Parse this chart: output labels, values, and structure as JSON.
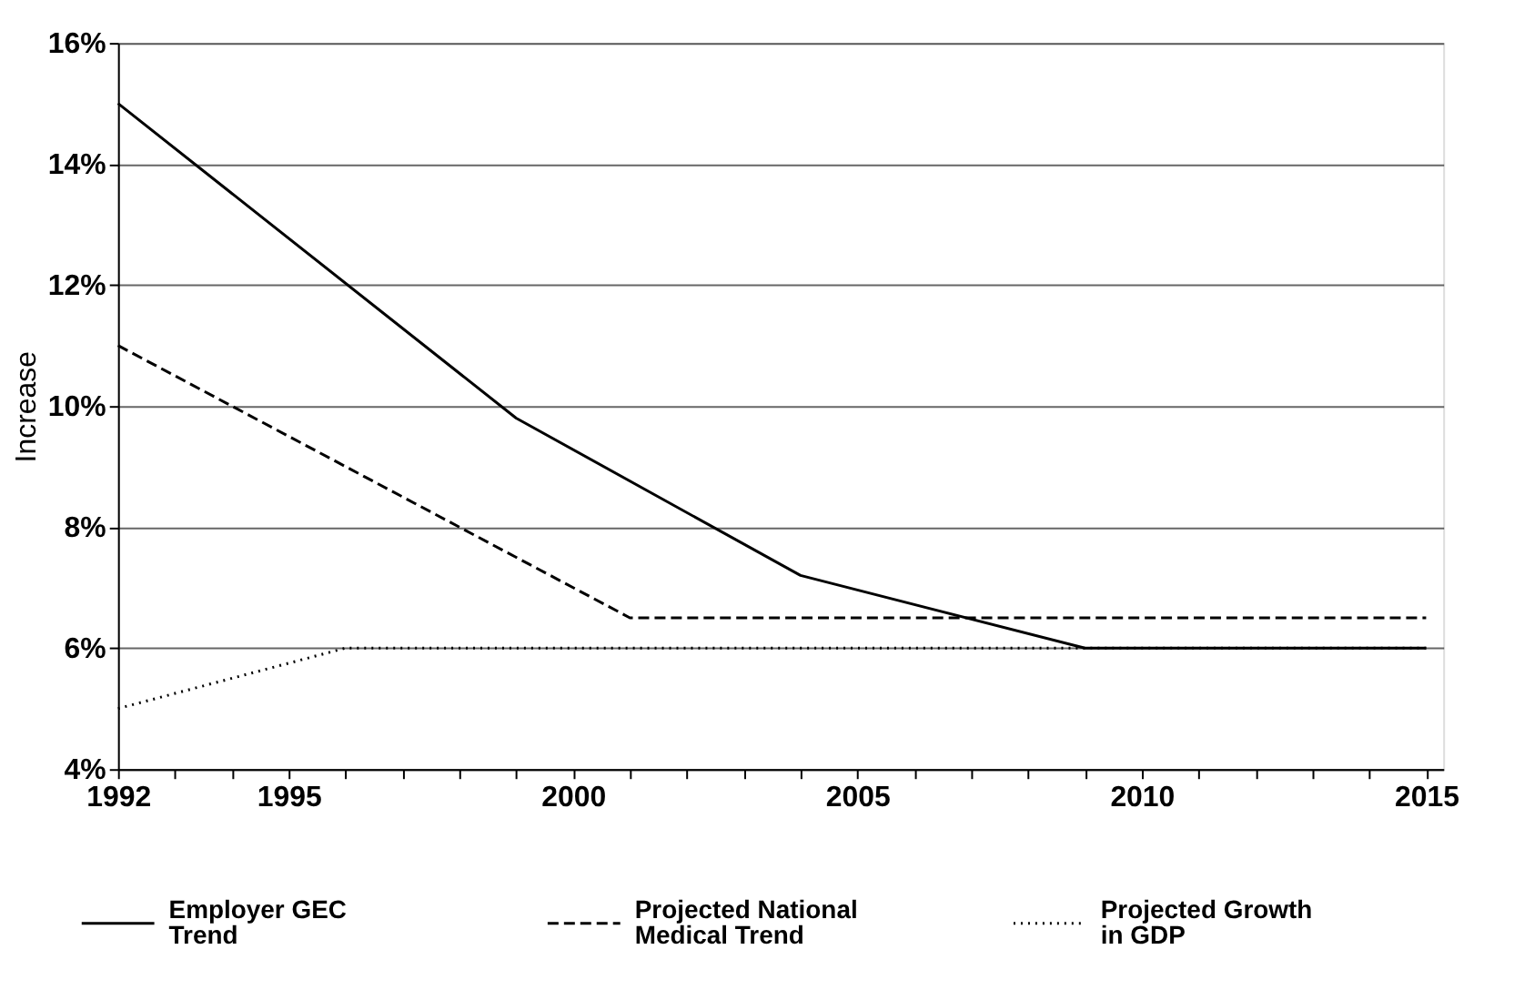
{
  "chart_data": {
    "type": "line",
    "ylabel": "Increase",
    "xlim": [
      1992,
      2015.3
    ],
    "xticks": [
      1992,
      {
        "value": 1993,
        "label": null
      },
      {
        "value": 1994,
        "label": null
      },
      1995,
      {
        "value": 1996,
        "label": null
      },
      {
        "value": 1997,
        "label": null
      },
      {
        "value": 1998,
        "label": null
      },
      {
        "value": 1999,
        "label": null
      },
      2000,
      {
        "value": 2001,
        "label": null
      },
      {
        "value": 2002,
        "label": null
      },
      {
        "value": 2003,
        "label": null
      },
      {
        "value": 2004,
        "label": null
      },
      2005,
      {
        "value": 2006,
        "label": null
      },
      {
        "value": 2007,
        "label": null
      },
      {
        "value": 2008,
        "label": null
      },
      {
        "value": 2009,
        "label": null
      },
      2010,
      {
        "value": 2011,
        "label": null
      },
      {
        "value": 2012,
        "label": null
      },
      {
        "value": 2013,
        "label": null
      },
      {
        "value": 2014,
        "label": null
      },
      2015
    ],
    "ylim": [
      4,
      16
    ],
    "yticks": [
      {
        "value": 4,
        "label": "4%"
      },
      {
        "value": 6,
        "label": "6%"
      },
      {
        "value": 8,
        "label": "8%"
      },
      {
        "value": 10,
        "label": "10%"
      },
      {
        "value": 12,
        "label": "12%"
      },
      {
        "value": 14,
        "label": "14%"
      },
      {
        "value": 16,
        "label": "16%"
      }
    ],
    "grid": "y",
    "legend": "bottom",
    "marker": "none",
    "series": [
      {
        "name": "Employer GEC Trend",
        "color": "#000000",
        "line_style": "solid",
        "x": [
          1992,
          1999,
          2004,
          2009,
          2015
        ],
        "values": [
          15,
          9.8,
          7.2,
          6,
          6
        ]
      },
      {
        "name": "Projected National Medical Trend",
        "color": "#000000",
        "line_style": "dashed",
        "x": [
          1992,
          2001,
          2015
        ],
        "values": [
          11,
          6.5,
          6.5
        ]
      },
      {
        "name": "Projected Growth in GDP",
        "color": "#000000",
        "line_style": "dotted",
        "x": [
          1992,
          1996,
          2015
        ],
        "values": [
          5,
          6,
          6
        ]
      }
    ]
  }
}
